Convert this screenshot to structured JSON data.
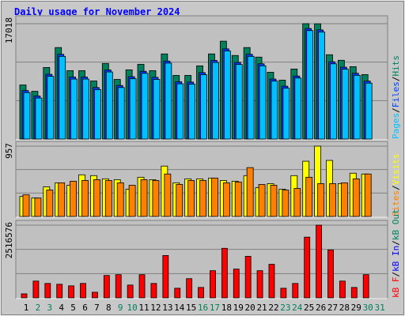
{
  "title": "Daily usage for November 2024",
  "legend_separator": "/",
  "chart_data": [
    {
      "type": "bar",
      "categories": [
        "1",
        "2",
        "3",
        "4",
        "5",
        "6",
        "7",
        "8",
        "9",
        "10",
        "11",
        "12",
        "13",
        "14",
        "15",
        "16",
        "17",
        "18",
        "19",
        "20",
        "21",
        "22",
        "23",
        "24",
        "25",
        "26",
        "27",
        "28",
        "29",
        "30",
        "31"
      ],
      "weekend_days": [
        "2",
        "3",
        "9",
        "10",
        "16",
        "17",
        "23",
        "24",
        "30",
        "31"
      ],
      "weekday_color": "#000000",
      "weekend_color": "#00805c",
      "ylim": [
        0,
        17950
      ],
      "yticks": [
        17018
      ],
      "series": [
        {
          "name": "Hits",
          "color": "#00805c",
          "values": [
            7980,
            7040,
            10560,
            13500,
            10090,
            10090,
            8570,
            11150,
            8800,
            10210,
            11030,
            10090,
            12560,
            9390,
            9390,
            10800,
            12560,
            14440,
            12330,
            13500,
            12090,
            9860,
            8690,
            10330,
            17018,
            17000,
            12440,
            11620,
            10680,
            9510,
            0
          ]
        },
        {
          "name": "Files",
          "color": "#0040ff",
          "values": [
            7150,
            6350,
            9550,
            12500,
            9150,
            9150,
            7600,
            10200,
            7900,
            9200,
            10000,
            9100,
            11500,
            8450,
            8400,
            9800,
            11600,
            13300,
            11300,
            12500,
            11100,
            8850,
            7800,
            9300,
            16300,
            16100,
            11400,
            10600,
            9700,
            8550,
            0
          ]
        },
        {
          "name": "Pages",
          "color": "#00c0ff",
          "values": [
            6850,
            6050,
            9250,
            12200,
            8850,
            8850,
            7300,
            9900,
            7600,
            8900,
            9700,
            8800,
            11200,
            8150,
            8100,
            9500,
            11300,
            13000,
            11000,
            12200,
            10800,
            8550,
            7500,
            9000,
            16000,
            15800,
            11100,
            10300,
            9400,
            8250,
            0
          ]
        }
      ]
    },
    {
      "type": "bar",
      "ylim": [
        0,
        1000
      ],
      "yticks": [
        957
      ],
      "series": [
        {
          "name": "Visits",
          "color": "#ffff00",
          "values": [
            272,
            251,
            403,
            458,
            425,
            567,
            556,
            512,
            501,
            371,
            534,
            501,
            686,
            458,
            512,
            512,
            523,
            490,
            480,
            556,
            392,
            447,
            371,
            556,
            752,
            957,
            763,
            447,
            589,
            578,
            0
          ]
        },
        {
          "name": "Sites",
          "color": "#ff8000",
          "values": [
            294,
            251,
            360,
            458,
            480,
            490,
            501,
            490,
            458,
            425,
            501,
            490,
            578,
            436,
            490,
            490,
            523,
            458,
            469,
            665,
            436,
            425,
            360,
            381,
            534,
            447,
            447,
            458,
            512,
            578,
            0
          ]
        }
      ]
    },
    {
      "type": "bar",
      "ylim": [
        0,
        2626000
      ],
      "yticks": [
        2516576
      ],
      "series": [
        {
          "name": "kB F",
          "color": "#ff0000",
          "values": [
            138000,
            580000,
            498000,
            470000,
            415000,
            498000,
            194000,
            774000,
            802000,
            442000,
            802000,
            498000,
            1466000,
            332000,
            664000,
            360000,
            940000,
            1715000,
            996000,
            1438000,
            940000,
            1161000,
            332000,
            498000,
            2102000,
            2516576,
            1659000,
            580000,
            360000,
            802000,
            0
          ]
        }
      ],
      "extra_legend": [
        {
          "name": "kB In",
          "color": "#0000ff"
        },
        {
          "name": "kB Out",
          "color": "#00805c"
        }
      ]
    }
  ]
}
